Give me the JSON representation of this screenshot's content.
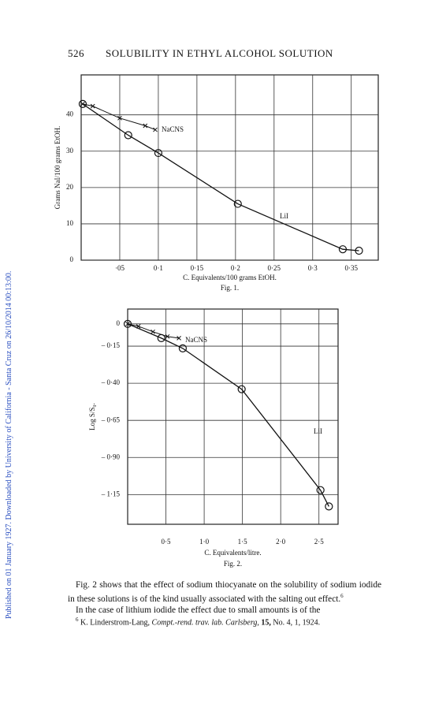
{
  "header": {
    "page_number": "526",
    "title": "SOLUBILITY IN ETHYL ALCOHOL SOLUTION"
  },
  "side_note": "Published on 01 January 1927. Downloaded by University of California - Santa Cruz on 26/10/2014 00:13:00.",
  "chart_data": [
    {
      "type": "line",
      "caption": "Fig. 1.",
      "x_label": "C. Equivalents/100 grams EtOH.",
      "y_label": "Grams NaI/100 grams EtOH.",
      "xlim": [
        0,
        0.385
      ],
      "ylim": [
        0,
        51
      ],
      "grid": true,
      "xticks": [
        {
          "value": 0.05,
          "label": "·05"
        },
        {
          "value": 0.1,
          "label": "0·1"
        },
        {
          "value": 0.15,
          "label": "0·15"
        },
        {
          "value": 0.2,
          "label": "0·2"
        },
        {
          "value": 0.25,
          "label": "0·25"
        },
        {
          "value": 0.3,
          "label": "0·3"
        },
        {
          "value": 0.35,
          "label": "0·35"
        }
      ],
      "yticks": [
        0,
        10,
        20,
        30,
        40
      ],
      "series": [
        {
          "name": "LiI",
          "color": "#111111",
          "marker": "circle",
          "x": [
            0.002,
            0.061,
            0.1,
            0.203,
            0.339,
            0.36
          ],
          "values": [
            43,
            34.4,
            29.5,
            15.5,
            3,
            2.6
          ]
        },
        {
          "name": "NaCNS",
          "color": "#111111",
          "marker": "cross",
          "x": [
            0.002,
            0.015,
            0.05,
            0.083,
            0.096
          ],
          "values": [
            43,
            42.4,
            39.1,
            37,
            35.9
          ]
        }
      ]
    },
    {
      "type": "line",
      "caption": "Fig. 2.",
      "x_label": "C. Equivalents/litre.",
      "y_label": "Log S/S₀.",
      "xlim": [
        0,
        2.75
      ],
      "ylim": [
        -1.35,
        0.1
      ],
      "grid": true,
      "xticks": [
        {
          "value": 0.5,
          "label": "0·5"
        },
        {
          "value": 1.0,
          "label": "1·0"
        },
        {
          "value": 1.5,
          "label": "1·5"
        },
        {
          "value": 2.0,
          "label": "2·0"
        },
        {
          "value": 2.5,
          "label": "2·5"
        }
      ],
      "yticks": [
        0,
        {
          "value": -0.15,
          "label": "– 0·15"
        },
        {
          "value": -0.4,
          "label": "– 0·40"
        },
        {
          "value": -0.65,
          "label": "– 0·65"
        },
        {
          "value": -0.9,
          "label": "– 0·90"
        },
        {
          "value": -1.15,
          "label": "– 1·15"
        }
      ],
      "series": [
        {
          "name": "LiI",
          "color": "#111111",
          "marker": "circle",
          "x": [
            0,
            0.44,
            0.72,
            1.49,
            2.52,
            2.63
          ],
          "values": [
            0,
            -0.096,
            -0.165,
            -0.44,
            -1.12,
            -1.23
          ]
        },
        {
          "name": "NaCNS",
          "color": "#111111",
          "marker": "cross",
          "x": [
            0,
            0.14,
            0.33,
            0.52,
            0.67
          ],
          "values": [
            0,
            -0.016,
            -0.053,
            -0.085,
            -0.096
          ]
        }
      ]
    }
  ],
  "body": {
    "paragraphs": [
      "Fig. 2 shows that the effect of sodium thiocyanate on the solubility of sodium iodide in these solutions is of the kind usually associated with the salting out effect.",
      "In the case of lithium iodide the effect due to small amounts is of the"
    ],
    "note_ref": "6"
  },
  "footnote": {
    "marker": "6",
    "author": "K. Linderstrom-Lang,",
    "journal": "Compt.-rend. trav. lab. Carlsberg,",
    "volume": "15,",
    "rest": "No. 4, 1, 1924."
  }
}
